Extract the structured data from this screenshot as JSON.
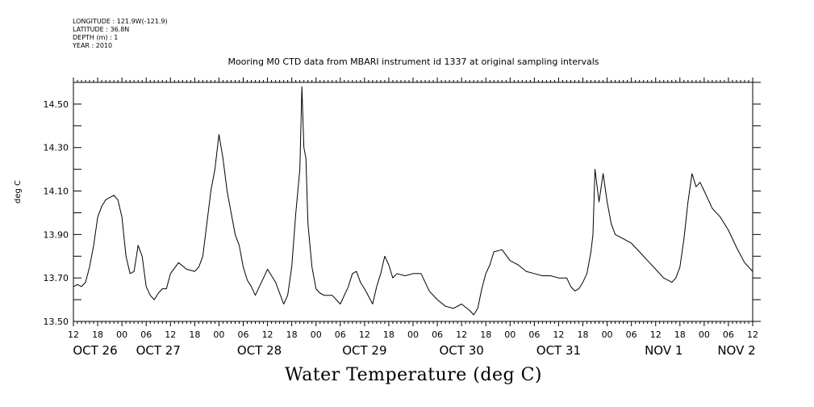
{
  "header": {
    "longitude": "LONGITUDE : 121.9W(-121.9)",
    "latitude": "LATITUDE : 36.8N",
    "depth": "DEPTH (m) : 1",
    "year": "YEAR : 2010"
  },
  "chart_data": {
    "type": "line",
    "title": "Mooring M0 CTD data from MBARI instrument id 1337 at original sampling intervals",
    "ylabel": "deg C",
    "xlabel": "Water Temperature (deg C)",
    "ylim": [
      13.5,
      14.6
    ],
    "xlim_hours": [
      0,
      168
    ],
    "y_ticks": [
      "13.50",
      "13.70",
      "13.90",
      "14.10",
      "14.30",
      "14.50"
    ],
    "hour_tick_labels": [
      "12",
      "18",
      "00",
      "06",
      "12",
      "18",
      "00",
      "06",
      "12",
      "18",
      "00",
      "06",
      "12",
      "18",
      "00",
      "06",
      "12",
      "18",
      "00",
      "06",
      "12",
      "18",
      "00",
      "06",
      "12",
      "18",
      "00",
      "06",
      "12"
    ],
    "day_labels": [
      "OCT 26",
      "OCT 27",
      "OCT 28",
      "OCT 29",
      "OCT 30",
      "OCT 31",
      "NOV  1",
      "NOV  2"
    ],
    "grid": false,
    "series": [
      {
        "color": "#000000",
        "x": [
          "2010-10-26T12:00",
          "2010-10-26T13:00",
          "2010-10-26T14:00",
          "2010-10-26T15:00",
          "2010-10-26T16:00",
          "2010-10-26T17:00",
          "2010-10-26T18:00",
          "2010-10-26T19:00",
          "2010-10-26T20:00",
          "2010-10-26T21:00",
          "2010-10-26T22:00",
          "2010-10-26T23:00",
          "2010-10-27T00:00",
          "2010-10-27T01:00",
          "2010-10-27T02:00",
          "2010-10-27T03:00",
          "2010-10-27T04:00",
          "2010-10-27T05:00",
          "2010-10-27T06:00",
          "2010-10-27T07:00",
          "2010-10-27T08:00",
          "2010-10-27T09:00",
          "2010-10-27T10:00",
          "2010-10-27T11:00",
          "2010-10-27T12:00",
          "2010-10-27T14:00",
          "2010-10-27T16:00",
          "2010-10-27T18:00",
          "2010-10-27T19:00",
          "2010-10-27T20:00",
          "2010-10-27T21:00",
          "2010-10-27T22:00",
          "2010-10-27T23:00",
          "2010-10-28T00:00",
          "2010-10-28T01:00",
          "2010-10-28T02:00",
          "2010-10-28T03:00",
          "2010-10-28T04:00",
          "2010-10-28T05:00",
          "2010-10-28T06:00",
          "2010-10-28T07:00",
          "2010-10-28T08:00",
          "2010-10-28T09:00",
          "2010-10-28T10:00",
          "2010-10-28T11:00",
          "2010-10-28T12:00",
          "2010-10-28T14:00",
          "2010-10-28T16:00",
          "2010-10-28T17:00",
          "2010-10-28T18:00",
          "2010-10-28T19:00",
          "2010-10-28T20:00",
          "2010-10-28T20:30",
          "2010-10-28T21:00",
          "2010-10-28T21:30",
          "2010-10-28T22:00",
          "2010-10-28T23:00",
          "2010-10-29T00:00",
          "2010-10-29T01:00",
          "2010-10-29T02:00",
          "2010-10-29T04:00",
          "2010-10-29T06:00",
          "2010-10-29T08:00",
          "2010-10-29T09:00",
          "2010-10-29T10:00",
          "2010-10-29T11:00",
          "2010-10-29T12:00",
          "2010-10-29T14:00",
          "2010-10-29T15:00",
          "2010-10-29T16:00",
          "2010-10-29T17:00",
          "2010-10-29T18:00",
          "2010-10-29T19:00",
          "2010-10-29T20:00",
          "2010-10-29T22:00",
          "2010-10-30T00:00",
          "2010-10-30T02:00",
          "2010-10-30T04:00",
          "2010-10-30T06:00",
          "2010-10-30T08:00",
          "2010-10-30T10:00",
          "2010-10-30T12:00",
          "2010-10-30T14:00",
          "2010-10-30T15:00",
          "2010-10-30T16:00",
          "2010-10-30T17:00",
          "2010-10-30T18:00",
          "2010-10-30T19:00",
          "2010-10-30T20:00",
          "2010-10-30T22:00",
          "2010-10-31T00:00",
          "2010-10-31T02:00",
          "2010-10-31T04:00",
          "2010-10-31T06:00",
          "2010-10-31T08:00",
          "2010-10-31T10:00",
          "2010-10-31T12:00",
          "2010-10-31T14:00",
          "2010-10-31T15:00",
          "2010-10-31T16:00",
          "2010-10-31T17:00",
          "2010-10-31T18:00",
          "2010-10-31T19:00",
          "2010-10-31T20:00",
          "2010-10-31T20:30",
          "2010-10-31T21:00",
          "2010-10-31T22:00",
          "2010-10-31T23:00",
          "2010-11-01T00:00",
          "2010-11-01T01:00",
          "2010-11-01T02:00",
          "2010-11-01T04:00",
          "2010-11-01T06:00",
          "2010-11-01T08:00",
          "2010-11-01T10:00",
          "2010-11-01T12:00",
          "2010-11-01T14:00",
          "2010-11-01T16:00",
          "2010-11-01T17:00",
          "2010-11-01T18:00",
          "2010-11-01T19:00",
          "2010-11-01T20:00",
          "2010-11-01T21:00",
          "2010-11-01T22:00",
          "2010-11-01T23:00",
          "2010-11-02T00:00",
          "2010-11-02T01:00",
          "2010-11-02T02:00",
          "2010-11-02T04:00",
          "2010-11-02T06:00",
          "2010-11-02T08:00",
          "2010-11-02T10:00",
          "2010-11-02T12:00"
        ],
        "values": [
          13.66,
          13.67,
          13.66,
          13.68,
          13.75,
          13.85,
          13.98,
          14.03,
          14.06,
          14.07,
          14.08,
          14.06,
          13.98,
          13.8,
          13.72,
          13.73,
          13.85,
          13.8,
          13.66,
          13.62,
          13.6,
          13.63,
          13.65,
          13.65,
          13.72,
          13.77,
          13.74,
          13.73,
          13.75,
          13.8,
          13.95,
          14.1,
          14.2,
          14.36,
          14.25,
          14.1,
          14.0,
          13.9,
          13.85,
          13.75,
          13.69,
          13.66,
          13.62,
          13.66,
          13.7,
          13.74,
          13.68,
          13.58,
          13.62,
          13.75,
          14.0,
          14.2,
          14.58,
          14.3,
          14.25,
          13.95,
          13.75,
          13.65,
          13.63,
          13.62,
          13.62,
          13.58,
          13.66,
          13.72,
          13.73,
          13.68,
          13.65,
          13.58,
          13.66,
          13.72,
          13.8,
          13.76,
          13.7,
          13.72,
          13.71,
          13.72,
          13.72,
          13.64,
          13.6,
          13.57,
          13.56,
          13.58,
          13.55,
          13.53,
          13.56,
          13.65,
          13.72,
          13.76,
          13.82,
          13.83,
          13.78,
          13.76,
          13.73,
          13.72,
          13.71,
          13.71,
          13.7,
          13.7,
          13.66,
          13.64,
          13.65,
          13.68,
          13.72,
          13.82,
          13.9,
          14.2,
          14.05,
          14.18,
          14.05,
          13.95,
          13.9,
          13.88,
          13.86,
          13.82,
          13.78,
          13.74,
          13.7,
          13.68,
          13.7,
          13.75,
          13.88,
          14.05,
          14.18,
          14.12,
          14.14,
          14.1,
          14.06,
          14.02,
          13.98,
          13.92,
          13.84,
          13.77,
          13.73
        ]
      }
    ]
  }
}
